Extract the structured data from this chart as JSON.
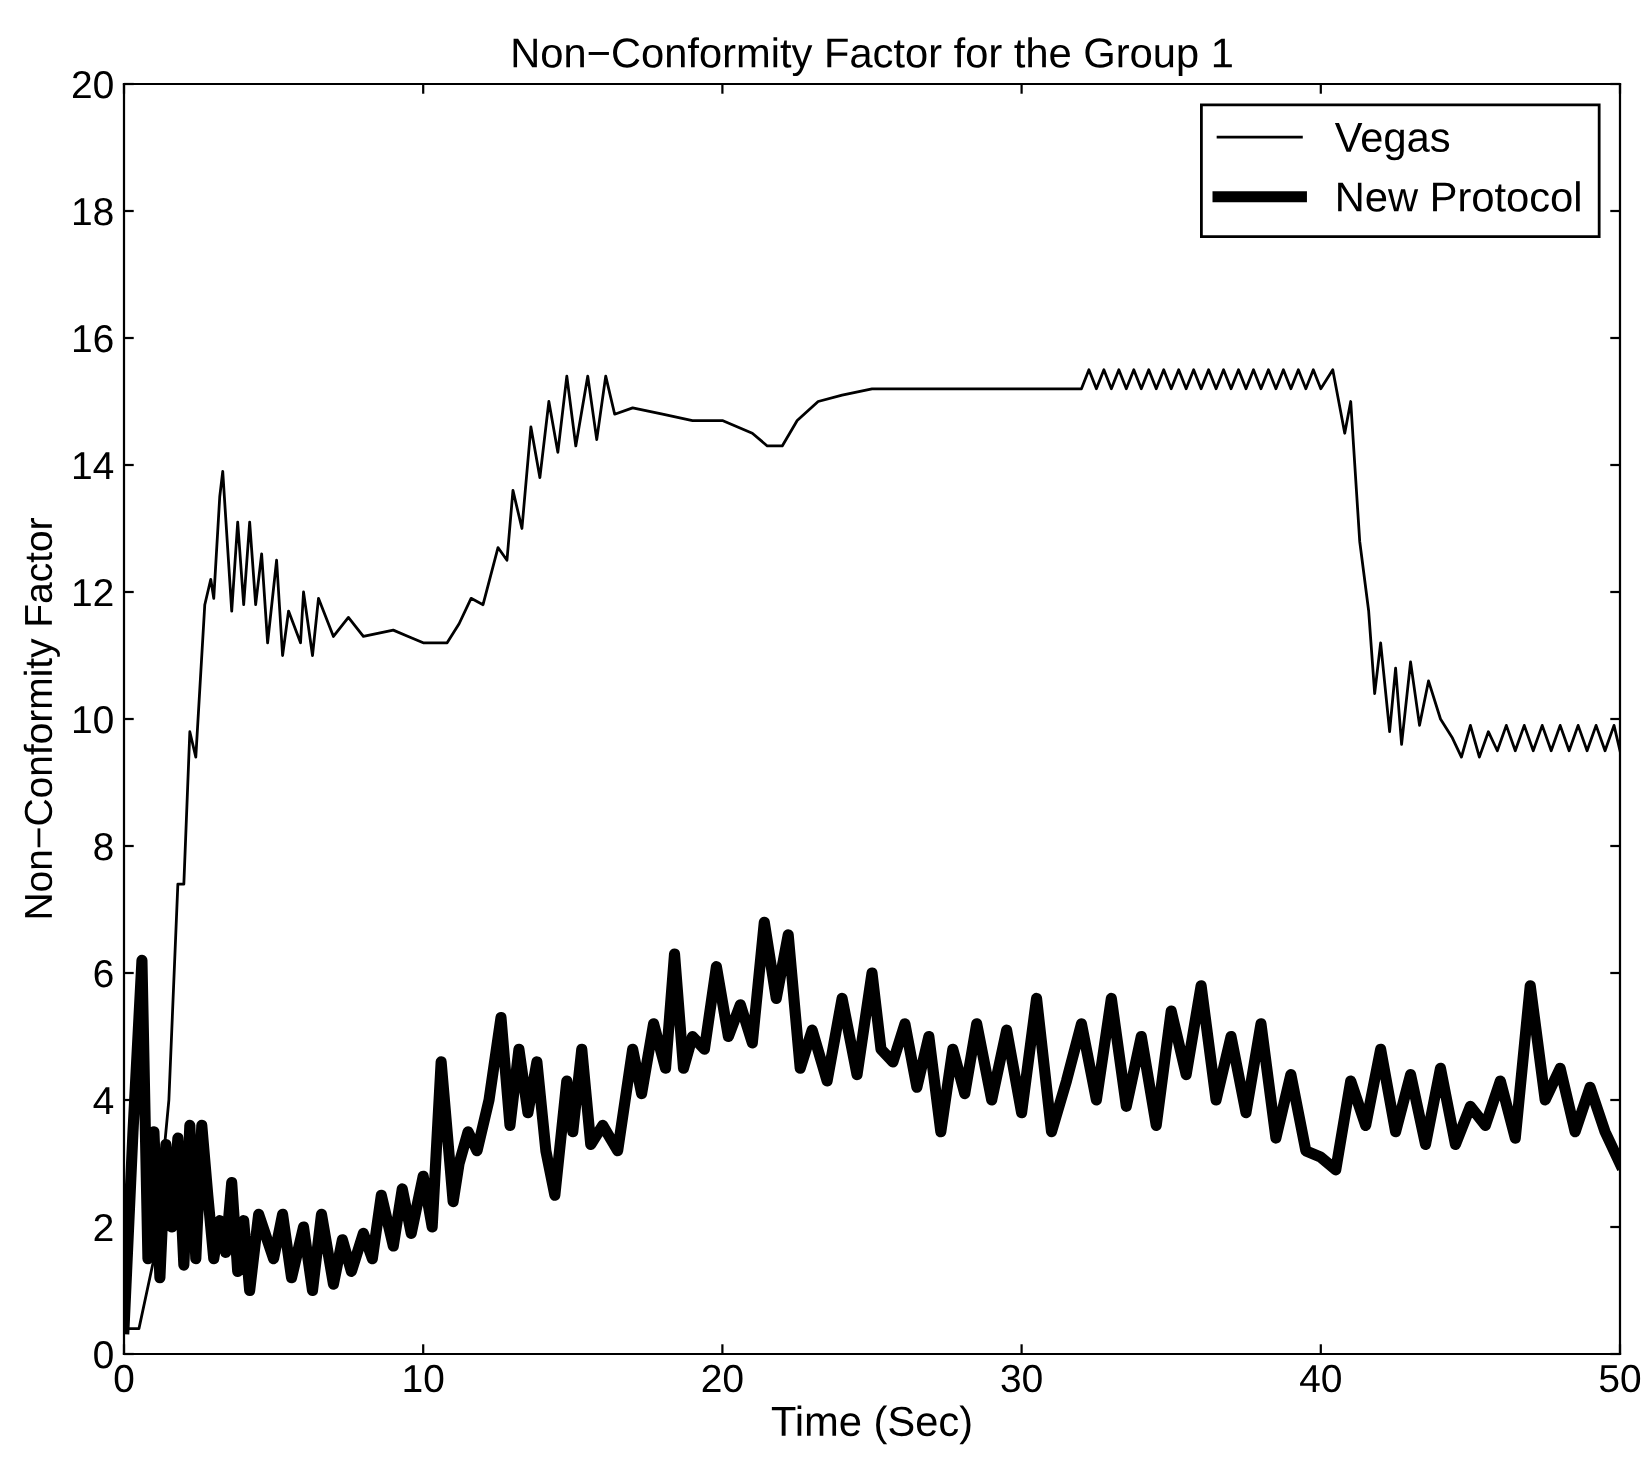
{
  "chart_data": {
    "type": "line",
    "title": "Non−Conformity Factor for the Group 1",
    "xlabel": "Time (Sec)",
    "ylabel": "Non−Conformity Factor",
    "xlim": [
      0,
      50
    ],
    "ylim": [
      0,
      20
    ],
    "xticks": [
      0,
      10,
      20,
      30,
      40,
      50
    ],
    "yticks": [
      0,
      2,
      4,
      6,
      8,
      10,
      12,
      14,
      16,
      18,
      20
    ],
    "legend": "top right",
    "grid": false,
    "series": [
      {
        "name": "Vegas",
        "color": "#000000",
        "x": [
          0,
          0.5,
          1.0,
          1.5,
          1.8,
          2.0,
          2.2,
          2.4,
          2.7,
          2.9,
          3.0,
          3.2,
          3.3,
          3.6,
          3.8,
          4.0,
          4.2,
          4.4,
          4.6,
          4.8,
          5.1,
          5.3,
          5.5,
          5.9,
          6.0,
          6.3,
          6.5,
          7.0,
          7.5,
          8.0,
          9.0,
          9.5,
          10.0,
          10.8,
          11.2,
          11.6,
          12.0,
          12.5,
          12.8,
          13.0,
          13.3,
          13.6,
          13.9,
          14.2,
          14.5,
          14.8,
          15.1,
          15.5,
          15.8,
          16.1,
          16.4,
          17,
          18,
          19,
          20,
          21,
          21.5,
          22,
          22.5,
          23.2,
          24,
          25,
          26,
          30,
          32,
          32.25,
          32.5,
          32.75,
          33,
          33.25,
          33.5,
          33.75,
          34,
          34.25,
          34.5,
          34.75,
          35,
          35.25,
          35.5,
          35.75,
          36,
          36.25,
          36.5,
          36.75,
          37,
          37.25,
          37.5,
          37.75,
          38,
          38.25,
          38.5,
          38.75,
          39,
          39.25,
          39.5,
          39.75,
          40,
          40.4,
          40.8,
          41.0,
          41.3,
          41.6,
          41.8,
          42.0,
          42.3,
          42.5,
          42.7,
          43.0,
          43.3,
          43.6,
          44.0,
          44.4,
          44.7,
          45.0,
          45.3,
          45.6,
          45.9,
          46.2,
          46.5,
          46.8,
          47.1,
          47.4,
          47.7,
          48.0,
          48.3,
          48.6,
          48.9,
          49.2,
          49.5,
          49.8,
          50
        ],
        "values": [
          0.4,
          0.4,
          1.5,
          4.0,
          7.4,
          7.4,
          9.8,
          9.4,
          11.8,
          12.2,
          11.9,
          13.5,
          13.9,
          11.7,
          13.1,
          11.8,
          13.1,
          11.8,
          12.6,
          11.2,
          12.5,
          11.0,
          11.7,
          11.2,
          12.0,
          11.0,
          11.9,
          11.3,
          11.6,
          11.3,
          11.4,
          11.3,
          11.2,
          11.2,
          11.5,
          11.9,
          11.8,
          12.7,
          12.5,
          13.6,
          13.0,
          14.6,
          13.8,
          15.0,
          14.2,
          15.4,
          14.3,
          15.4,
          14.4,
          15.4,
          14.8,
          14.9,
          14.8,
          14.7,
          14.7,
          14.5,
          14.3,
          14.3,
          14.7,
          15.0,
          15.1,
          15.2,
          15.2,
          15.2,
          15.2,
          15.5,
          15.2,
          15.5,
          15.2,
          15.5,
          15.2,
          15.5,
          15.2,
          15.5,
          15.2,
          15.5,
          15.2,
          15.5,
          15.2,
          15.5,
          15.2,
          15.5,
          15.2,
          15.5,
          15.2,
          15.5,
          15.2,
          15.5,
          15.2,
          15.5,
          15.2,
          15.5,
          15.2,
          15.5,
          15.2,
          15.5,
          15.2,
          15.5,
          14.5,
          15.0,
          12.8,
          11.7,
          10.4,
          11.2,
          9.8,
          10.8,
          9.6,
          10.9,
          9.9,
          10.6,
          10.0,
          9.7,
          9.4,
          9.9,
          9.4,
          9.8,
          9.5,
          9.9,
          9.5,
          9.9,
          9.5,
          9.9,
          9.5,
          9.9,
          9.5,
          9.9,
          9.5,
          9.9,
          9.5,
          9.9,
          9.5
        ]
      },
      {
        "name": "New Protocol",
        "color": "#000000",
        "x": [
          0,
          0.3,
          0.6,
          0.8,
          1.0,
          1.2,
          1.4,
          1.6,
          1.8,
          2.0,
          2.2,
          2.4,
          2.6,
          2.8,
          3.0,
          3.2,
          3.4,
          3.6,
          3.8,
          4.0,
          4.2,
          4.5,
          5.0,
          5.3,
          5.6,
          6.0,
          6.3,
          6.6,
          7.0,
          7.3,
          7.6,
          8.0,
          8.3,
          8.6,
          9.0,
          9.3,
          9.6,
          10.0,
          10.3,
          10.6,
          11.0,
          11.2,
          11.5,
          11.8,
          12.2,
          12.6,
          12.9,
          13.2,
          13.5,
          13.8,
          14.1,
          14.4,
          14.8,
          15.0,
          15.3,
          15.6,
          16.0,
          16.5,
          17.0,
          17.3,
          17.7,
          18.1,
          18.4,
          18.7,
          19.0,
          19.4,
          19.8,
          20.2,
          20.6,
          21.0,
          21.4,
          21.8,
          22.2,
          22.6,
          23.0,
          23.5,
          24.0,
          24.5,
          25.0,
          25.3,
          25.7,
          26.1,
          26.5,
          26.9,
          27.3,
          27.7,
          28.1,
          28.5,
          29.0,
          29.5,
          30.0,
          30.5,
          31.0,
          31.5,
          32.0,
          32.5,
          33.0,
          33.5,
          34.0,
          34.5,
          35.0,
          35.5,
          36.0,
          36.5,
          37.0,
          37.5,
          38.0,
          38.5,
          39.0,
          39.5,
          40.0,
          40.5,
          41.0,
          41.5,
          42.0,
          42.5,
          43.0,
          43.5,
          44.0,
          44.5,
          45.0,
          45.5,
          46.0,
          46.5,
          47.0,
          47.5,
          48.0,
          48.5,
          49.0,
          49.5,
          50
        ],
        "values": [
          0.4,
          3.5,
          6.2,
          1.5,
          3.5,
          1.2,
          3.3,
          2.0,
          3.4,
          1.4,
          3.6,
          1.5,
          3.6,
          2.5,
          1.5,
          2.1,
          1.6,
          2.7,
          1.3,
          2.1,
          1.0,
          2.2,
          1.5,
          2.2,
          1.2,
          2.0,
          1.0,
          2.2,
          1.1,
          1.8,
          1.3,
          1.9,
          1.5,
          2.5,
          1.7,
          2.6,
          1.9,
          2.8,
          2.0,
          4.6,
          2.4,
          3.0,
          3.5,
          3.2,
          4.0,
          5.3,
          3.6,
          4.8,
          3.8,
          4.6,
          3.2,
          2.5,
          4.3,
          3.5,
          4.8,
          3.3,
          3.6,
          3.2,
          4.8,
          4.1,
          5.2,
          4.5,
          6.3,
          4.5,
          5.0,
          4.8,
          6.1,
          5.0,
          5.5,
          4.9,
          6.8,
          5.6,
          6.6,
          4.5,
          5.1,
          4.3,
          5.6,
          4.4,
          6.0,
          4.8,
          4.6,
          5.2,
          4.2,
          5.0,
          3.5,
          4.8,
          4.1,
          5.2,
          4.0,
          5.1,
          3.8,
          5.6,
          3.5,
          4.3,
          5.2,
          4.0,
          5.6,
          3.9,
          5.0,
          3.6,
          5.4,
          4.4,
          5.8,
          4.0,
          5.0,
          3.8,
          5.2,
          3.4,
          4.4,
          3.2,
          3.1,
          2.9,
          4.3,
          3.6,
          4.8,
          3.5,
          4.4,
          3.3,
          4.5,
          3.3,
          3.9,
          3.6,
          4.3,
          3.4,
          5.8,
          4.0,
          4.5,
          3.5,
          4.2,
          3.5,
          3.0
        ]
      }
    ]
  }
}
